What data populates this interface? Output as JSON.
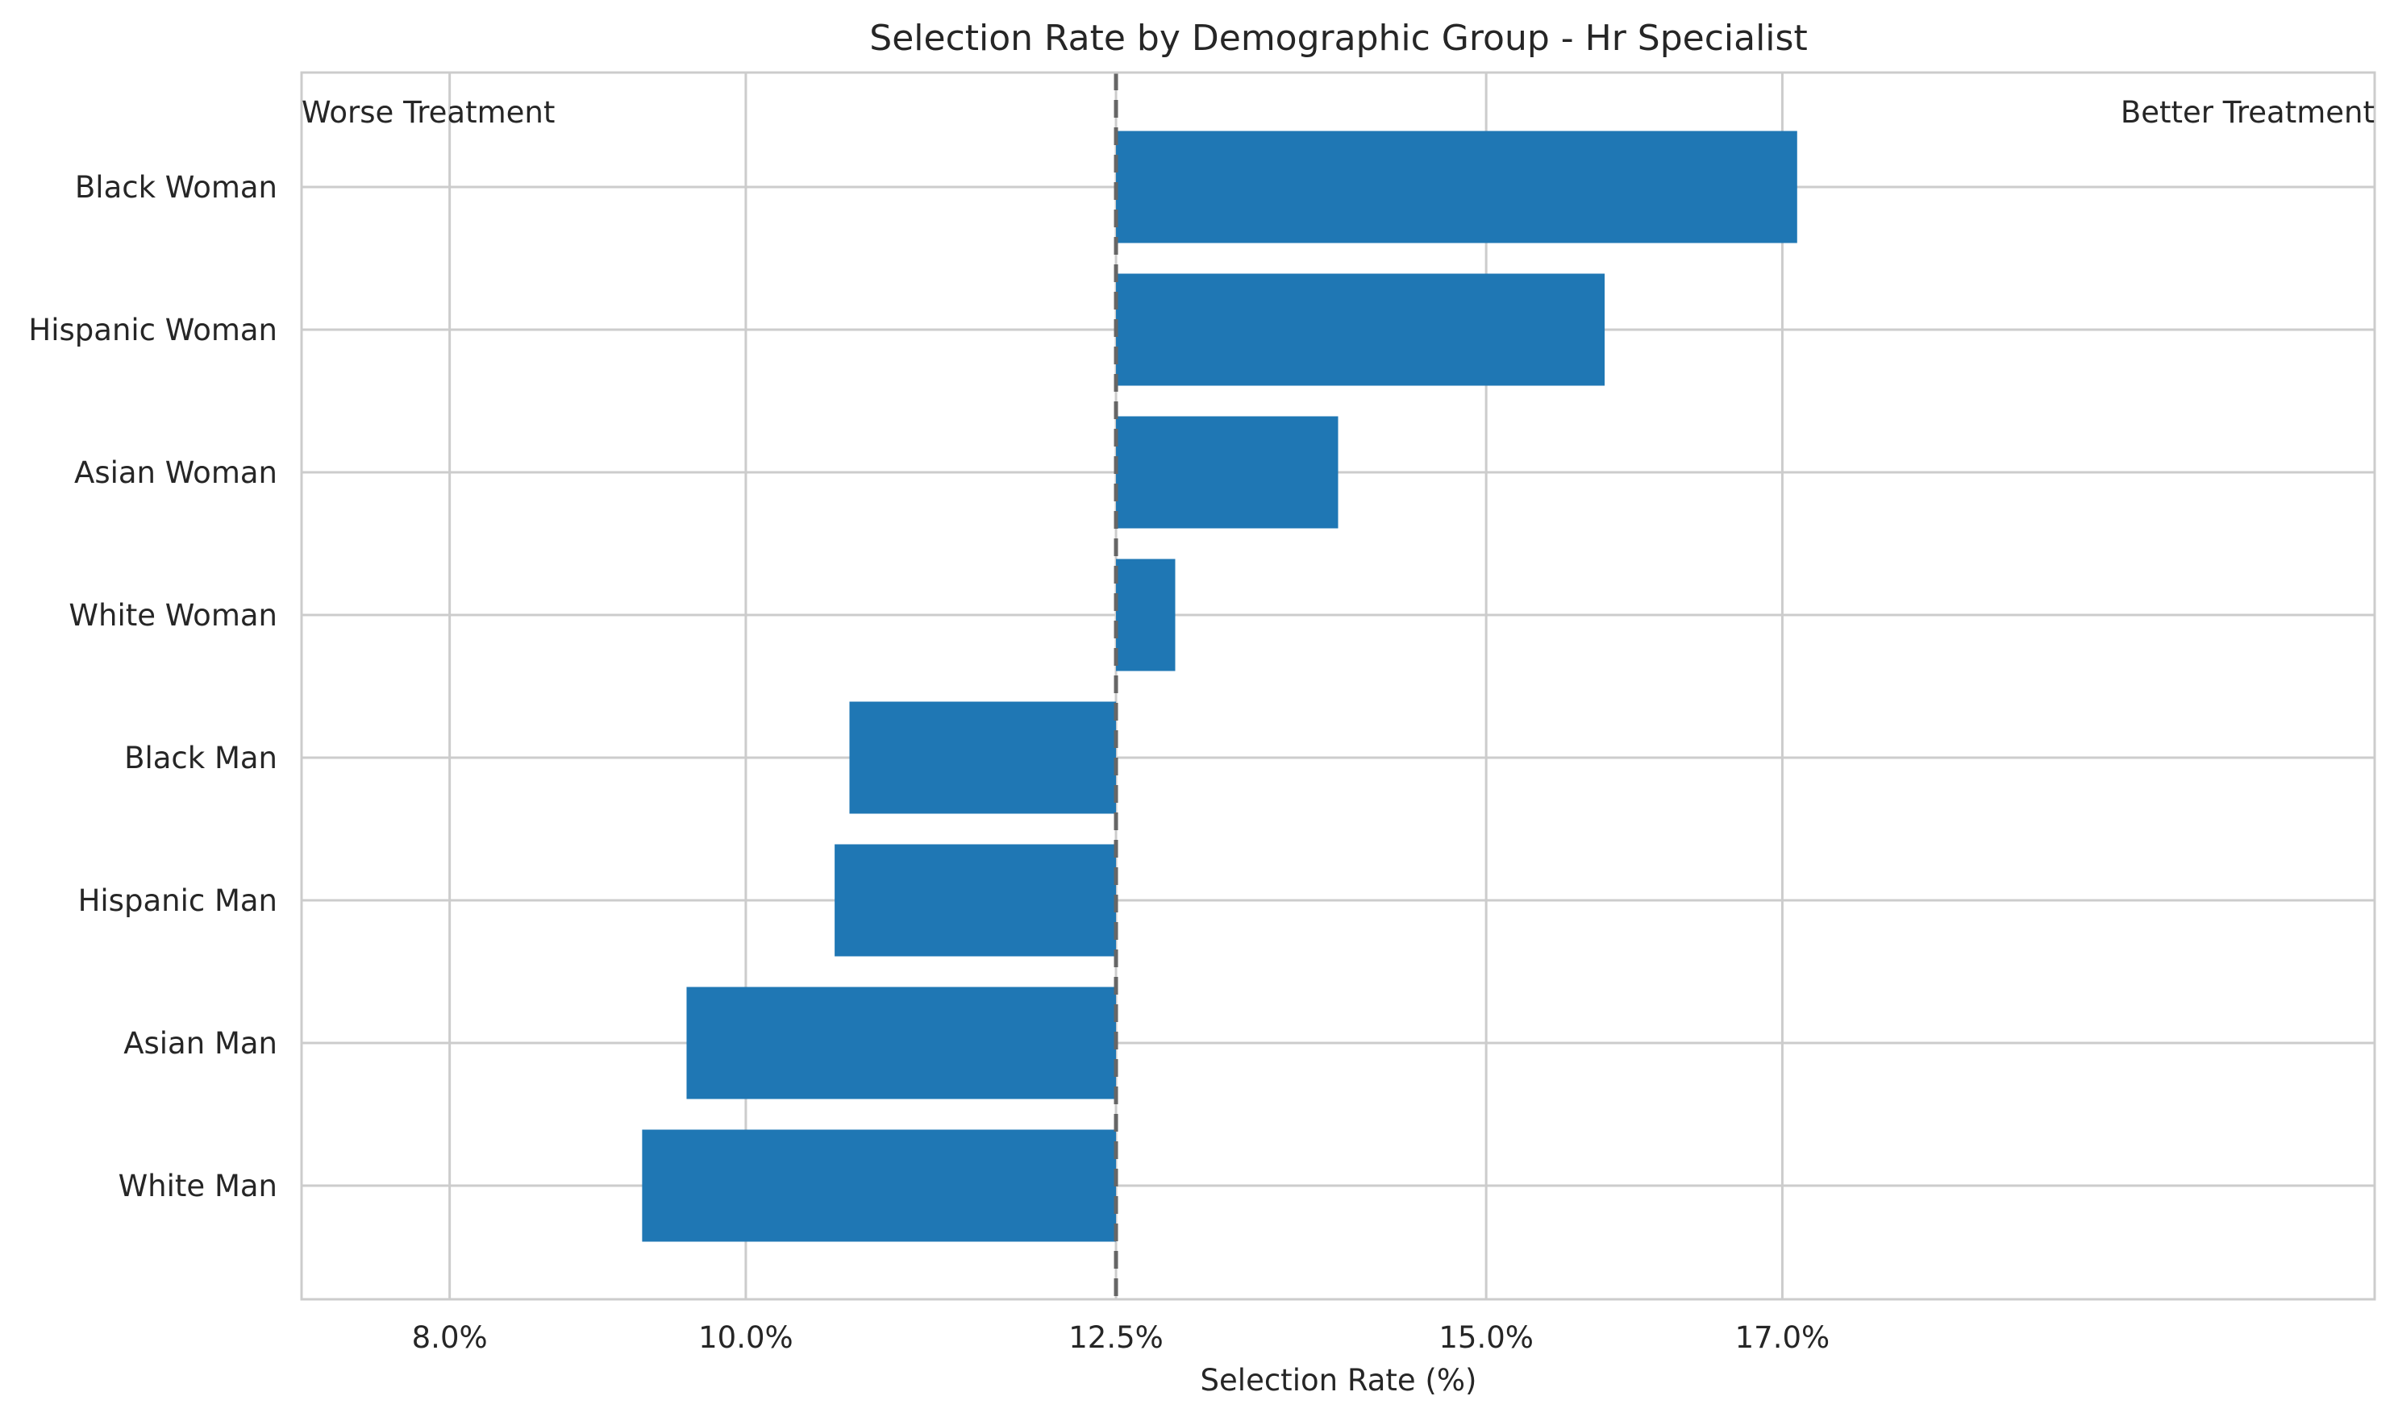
{
  "chart_data": {
    "type": "bar",
    "orientation": "horizontal",
    "title": "Selection Rate by Demographic Group - Hr Specialist",
    "xlabel": "Selection Rate (%)",
    "ylabel": "",
    "xlim": [
      7.0,
      21.0
    ],
    "xticks": [
      8.0,
      10.0,
      12.5,
      15.0,
      17.0
    ],
    "xtick_labels": [
      "8.0%",
      "10.0%",
      "12.5%",
      "15.0%",
      "17.0%"
    ],
    "reference_line": 12.5,
    "grid": true,
    "categories": [
      "Black Woman",
      "Hispanic Woman",
      "Asian Woman",
      "White Woman",
      "Black Man",
      "Hispanic Man",
      "Asian Man",
      "White Man"
    ],
    "values": [
      17.1,
      15.8,
      14.0,
      12.9,
      10.7,
      10.6,
      9.6,
      9.3
    ],
    "annotations": {
      "left": "Worse Treatment",
      "right": "Better Treatment"
    },
    "colors": {
      "bar": "#1f77b4",
      "reference": "#666666",
      "grid": "#cccccc"
    }
  }
}
